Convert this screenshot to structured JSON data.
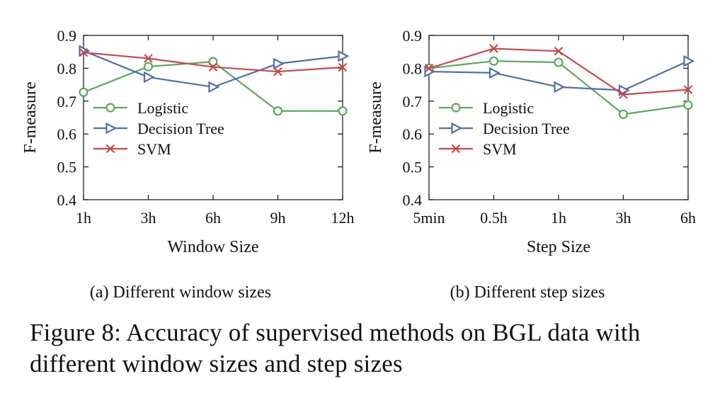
{
  "colors": {
    "logistic": "#59a95c",
    "decision_tree": "#4f6eae",
    "svm": "#c8494a"
  },
  "chart_data": [
    {
      "type": "line",
      "xlabel": "Window Size",
      "ylabel": "F-measure",
      "categories": [
        "1h",
        "3h",
        "6h",
        "9h",
        "12h"
      ],
      "ylim": [
        0.4,
        0.9
      ],
      "yticks": [
        "0.4",
        "0.5",
        "0.6",
        "0.7",
        "0.8",
        "0.9"
      ],
      "legend_position": "bottom-left",
      "subcaption": "(a) Different window sizes",
      "series": [
        {
          "name": "Logistic",
          "marker": "circle",
          "color_key": "logistic",
          "values": [
            0.727,
            0.805,
            0.82,
            0.67,
            0.67
          ]
        },
        {
          "name": "Decision Tree",
          "marker": "triangle-right",
          "color_key": "decision_tree",
          "values": [
            0.853,
            0.773,
            0.743,
            0.814,
            0.837
          ]
        },
        {
          "name": "SVM",
          "marker": "x",
          "color_key": "svm",
          "values": [
            0.848,
            0.83,
            0.804,
            0.79,
            0.803
          ]
        }
      ]
    },
    {
      "type": "line",
      "xlabel": "Step Size",
      "ylabel": "F-measure",
      "categories": [
        "5min",
        "0.5h",
        "1h",
        "3h",
        "6h"
      ],
      "ylim": [
        0.4,
        0.9
      ],
      "yticks": [
        "0.4",
        "0.5",
        "0.6",
        "0.7",
        "0.8",
        "0.9"
      ],
      "legend_position": "bottom-left",
      "subcaption": "(b) Different step sizes",
      "series": [
        {
          "name": "Logistic",
          "marker": "circle",
          "color_key": "logistic",
          "values": [
            0.8,
            0.822,
            0.818,
            0.66,
            0.688
          ]
        },
        {
          "name": "Decision Tree",
          "marker": "triangle-right",
          "color_key": "decision_tree",
          "values": [
            0.79,
            0.786,
            0.743,
            0.733,
            0.822
          ]
        },
        {
          "name": "SVM",
          "marker": "x",
          "color_key": "svm",
          "values": [
            0.8,
            0.86,
            0.852,
            0.72,
            0.735
          ]
        }
      ]
    }
  ],
  "figure_caption": "Figure 8: Accuracy of supervised methods on BGL data with different window sizes and step sizes"
}
